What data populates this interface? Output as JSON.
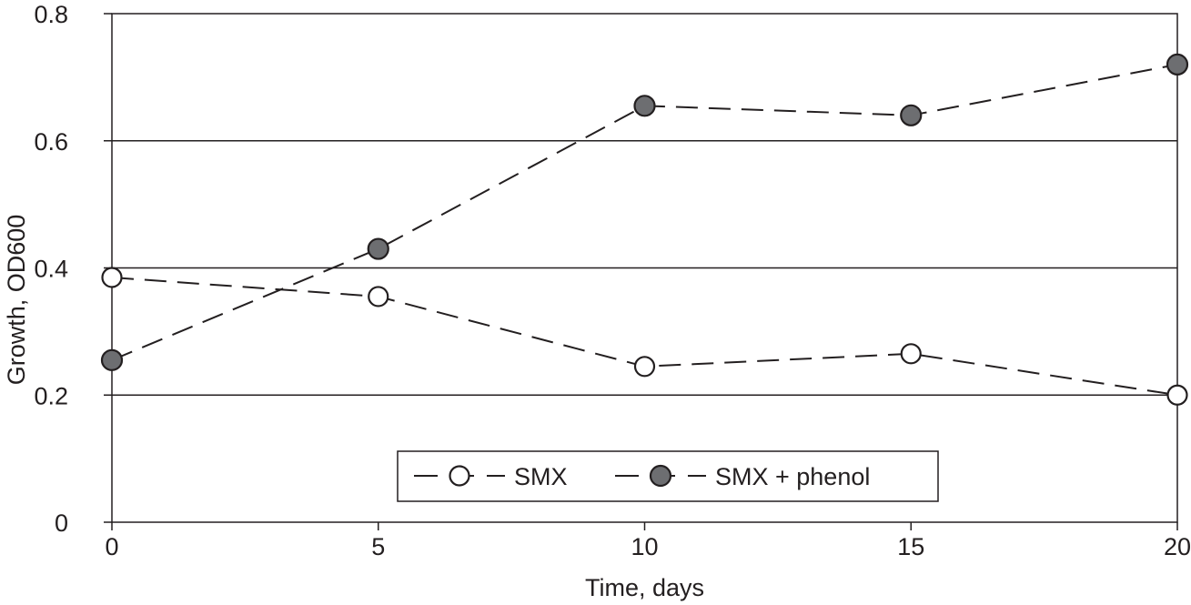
{
  "chart_data": {
    "type": "line",
    "title": "",
    "xlabel": "Time, days",
    "ylabel": "Growth, OD600",
    "xlim": [
      0,
      20
    ],
    "ylim": [
      0,
      0.8
    ],
    "x_ticks": [
      0,
      5,
      10,
      15,
      20
    ],
    "x_tick_labels": [
      "0",
      "5",
      "10",
      "15",
      "20"
    ],
    "y_ticks": [
      0,
      0.2,
      0.4,
      0.6,
      0.8
    ],
    "y_tick_labels": [
      "0",
      "0.2",
      "0.4",
      "0.6",
      "0.8"
    ],
    "grid": "horizontal lines at 0.2, 0.4, 0.6",
    "legend_position": "bottom-center",
    "series": [
      {
        "name": "SMX",
        "marker": "open-circle",
        "line_style": "dashed",
        "x": [
          0,
          5,
          10,
          15,
          20
        ],
        "y": [
          0.385,
          0.355,
          0.245,
          0.265,
          0.2
        ]
      },
      {
        "name": "SMX + phenol",
        "marker": "filled-circle",
        "line_style": "dashed",
        "x": [
          0,
          5,
          10,
          15,
          20
        ],
        "y": [
          0.255,
          0.43,
          0.655,
          0.64,
          0.72
        ]
      }
    ],
    "colors": {
      "line": "#231f20",
      "open_marker_fill": "#ffffff",
      "filled_marker_fill": "#6d6e71"
    }
  }
}
